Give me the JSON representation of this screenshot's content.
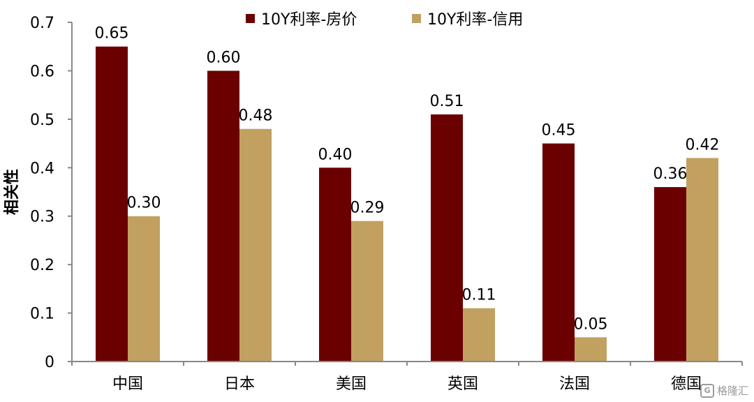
{
  "chart_data": {
    "type": "bar",
    "categories": [
      "中国",
      "日本",
      "美国",
      "英国",
      "法国",
      "德国"
    ],
    "series": [
      {
        "name": "10Y利率-房价",
        "values": [
          0.65,
          0.6,
          0.4,
          0.51,
          0.45,
          0.36
        ],
        "labels": [
          "0.65",
          "0.60",
          "0.40",
          "0.51",
          "0.45",
          "0.36"
        ],
        "color": "#6B0000"
      },
      {
        "name": "10Y利率-信用",
        "values": [
          0.3,
          0.48,
          0.29,
          0.11,
          0.05,
          0.42
        ],
        "labels": [
          "0.30",
          "0.48",
          "0.29",
          "0.11",
          "0.05",
          "0.42"
        ],
        "color": "#C1A060"
      }
    ],
    "ylabel": "相关性",
    "xlabel": "",
    "ylim": [
      0,
      0.7
    ],
    "yticks": [
      "0",
      "0.1",
      "0.2",
      "0.3",
      "0.4",
      "0.5",
      "0.6",
      "0.7"
    ],
    "legend_position": "top-center",
    "grid": false
  },
  "watermark": {
    "icon": "gelonghui-logo-icon",
    "text": "格隆汇"
  }
}
